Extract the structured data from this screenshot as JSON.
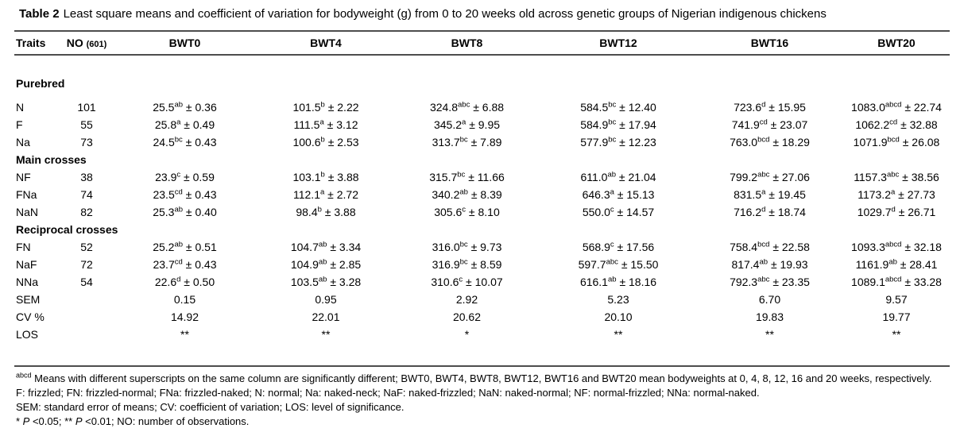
{
  "title": {
    "label": "Table 2",
    "text": "Least square means and coefficient of variation for bodyweight (g) from 0 to 20 weeks old across genetic groups of Nigerian indigenous chickens"
  },
  "table": {
    "headers": {
      "traits": "Traits",
      "no_main": "NO",
      "no_sub": "(601)",
      "bwt": [
        "BWT0",
        "BWT4",
        "BWT8",
        "BWT12",
        "BWT16",
        "BWT20"
      ]
    },
    "rows": [
      {
        "type": "section",
        "label": "Purebred",
        "first": true
      },
      {
        "type": "data",
        "trait": "N",
        "no": "101",
        "cells": [
          [
            "25.5",
            "ab",
            "0.36"
          ],
          [
            "101.5",
            "b",
            "2.22"
          ],
          [
            "324.8",
            "abc",
            "6.88"
          ],
          [
            "584.5",
            "bc",
            "12.40"
          ],
          [
            "723.6",
            "d",
            "15.95"
          ],
          [
            "1083.0",
            "abcd",
            "22.74"
          ]
        ]
      },
      {
        "type": "data",
        "trait": "F",
        "no": "55",
        "cells": [
          [
            "25.8",
            "a",
            "0.49"
          ],
          [
            "111.5",
            "a",
            "3.12"
          ],
          [
            "345.2",
            "a",
            "9.95"
          ],
          [
            "584.9",
            "bc",
            "17.94"
          ],
          [
            "741.9",
            "cd",
            "23.07"
          ],
          [
            "1062.2",
            "cd",
            "32.88"
          ]
        ]
      },
      {
        "type": "data",
        "trait": "Na",
        "no": "73",
        "cells": [
          [
            "24.5",
            "bc",
            "0.43"
          ],
          [
            "100.6",
            "b",
            "2.53"
          ],
          [
            "313.7",
            "bc",
            "7.89"
          ],
          [
            "577.9",
            "bc",
            "12.23"
          ],
          [
            "763.0",
            "bcd",
            "18.29"
          ],
          [
            "1071.9",
            "bcd",
            "26.08"
          ]
        ]
      },
      {
        "type": "section",
        "label": "Main crosses"
      },
      {
        "type": "data",
        "trait": "NF",
        "no": "38",
        "cells": [
          [
            "23.9",
            "c",
            "0.59"
          ],
          [
            "103.1",
            "b",
            "3.88"
          ],
          [
            "315.7",
            "bc",
            "11.66"
          ],
          [
            "611.0",
            "ab",
            "21.04"
          ],
          [
            "799.2",
            "abc",
            "27.06"
          ],
          [
            "1157.3",
            "abc",
            "38.56"
          ]
        ]
      },
      {
        "type": "data",
        "trait": "FNa",
        "no": "74",
        "cells": [
          [
            "23.5",
            "cd",
            "0.43"
          ],
          [
            "112.1",
            "a",
            "2.72"
          ],
          [
            "340.2",
            "ab",
            "8.39"
          ],
          [
            "646.3",
            "a",
            "15.13"
          ],
          [
            "831.5",
            "a",
            "19.45"
          ],
          [
            "1173.2",
            "a",
            "27.73"
          ]
        ]
      },
      {
        "type": "data",
        "trait": "NaN",
        "no": "82",
        "cells": [
          [
            "25.3",
            "ab",
            "0.40"
          ],
          [
            "98.4",
            "b",
            "3.88"
          ],
          [
            "305.6",
            "c",
            "8.10"
          ],
          [
            "550.0",
            "c",
            "14.57"
          ],
          [
            "716.2",
            "d",
            "18.74"
          ],
          [
            "1029.7",
            "d",
            "26.71"
          ]
        ]
      },
      {
        "type": "section",
        "label": "Reciprocal crosses"
      },
      {
        "type": "data",
        "trait": "FN",
        "no": "52",
        "cells": [
          [
            "25.2",
            "ab",
            "0.51"
          ],
          [
            "104.7",
            "ab",
            "3.34"
          ],
          [
            "316.0",
            "bc",
            "9.73"
          ],
          [
            "568.9",
            "c",
            "17.56"
          ],
          [
            "758.4",
            "bcd",
            "22.58"
          ],
          [
            "1093.3",
            "abcd",
            "32.18"
          ]
        ]
      },
      {
        "type": "data",
        "trait": "NaF",
        "no": "72",
        "cells": [
          [
            "23.7",
            "cd",
            "0.43"
          ],
          [
            "104.9",
            "ab",
            "2.85"
          ],
          [
            "316.9",
            "bc",
            "8.59"
          ],
          [
            "597.7",
            "abc",
            "15.50"
          ],
          [
            "817.4",
            "ab",
            "19.93"
          ],
          [
            "1161.9",
            "ab",
            "28.41"
          ]
        ]
      },
      {
        "type": "data",
        "trait": "NNa",
        "no": "54",
        "cells": [
          [
            "22.6",
            "d",
            "0.50"
          ],
          [
            "103.5",
            "ab",
            "3.28"
          ],
          [
            "310.6",
            "c",
            "10.07"
          ],
          [
            "616.1",
            "ab",
            "18.16"
          ],
          [
            "792.3",
            "abc",
            "23.35"
          ],
          [
            "1089.1",
            "abcd",
            "33.28"
          ]
        ]
      },
      {
        "type": "stat",
        "trait": "SEM",
        "no": "",
        "values": [
          "0.15",
          "0.95",
          "2.92",
          "5.23",
          "6.70",
          "9.57"
        ]
      },
      {
        "type": "stat",
        "trait": "CV %",
        "no": "",
        "values": [
          "14.92",
          "22.01",
          "20.62",
          "20.10",
          "19.83",
          "19.77"
        ]
      },
      {
        "type": "stat",
        "trait": "LOS",
        "no": "",
        "values": [
          "**",
          "**",
          "*",
          "**",
          "**",
          "**"
        ]
      }
    ]
  },
  "footnotes": [
    {
      "sup": "abcd",
      "segments": [
        {
          "text": " Means with different superscripts on the same column are significantly different; BWT0, BWT4, BWT8, BWT12, BWT16 and BWT20 mean bodyweights at 0, 4, 8, 12, 16 and 20 weeks, respectively."
        }
      ]
    },
    {
      "segments": [
        {
          "text": "F: frizzled; FN: frizzled-normal; FNa: frizzled-naked; N: normal; Na: naked-neck; NaF: naked-frizzled; NaN: naked-normal; NF: normal-frizzled; NNa: normal-naked."
        }
      ]
    },
    {
      "segments": [
        {
          "text": "SEM: standard error of means; CV: coefficient of variation; LOS: level of significance."
        }
      ]
    },
    {
      "segments": [
        {
          "text": "* ",
          "italic": false
        },
        {
          "text": "P",
          "italic": true
        },
        {
          "text": " <0.05; ** ",
          "italic": false
        },
        {
          "text": "P",
          "italic": true
        },
        {
          "text": " <0.01; NO: number of observations.",
          "italic": false
        }
      ]
    }
  ]
}
